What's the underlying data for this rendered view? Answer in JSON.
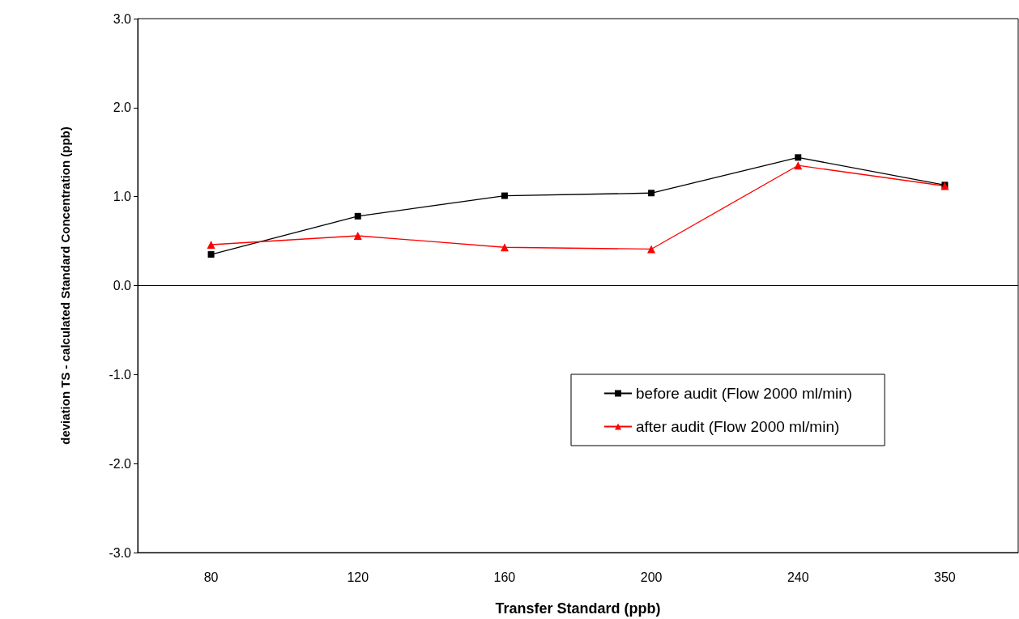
{
  "chart_data": {
    "type": "line",
    "xlabel": "Transfer Standard (ppb)",
    "ylabel": "deviation TS - calculated Standard Concentration (ppb)",
    "categories": [
      "80",
      "120",
      "160",
      "200",
      "240",
      "350"
    ],
    "series": [
      {
        "name": "before audit (Flow 2000 ml/min)",
        "color": "#000000",
        "marker": "square",
        "values": [
          0.35,
          0.78,
          1.01,
          1.04,
          1.44,
          1.13
        ]
      },
      {
        "name": "after audit (Flow 2000 ml/min)",
        "color": "#ff0000",
        "marker": "triangle",
        "values": [
          0.46,
          0.56,
          0.43,
          0.41,
          1.35,
          1.12
        ]
      }
    ],
    "ylim": [
      -3,
      3
    ],
    "yticks": [
      {
        "value": -3,
        "label": "-3.0"
      },
      {
        "value": -2,
        "label": "-2.0"
      },
      {
        "value": -1,
        "label": "-1.0"
      },
      {
        "value": 0,
        "label": "0.0"
      },
      {
        "value": 1,
        "label": "1.0"
      },
      {
        "value": 2,
        "label": "2.0"
      },
      {
        "value": 3,
        "label": "3.0"
      }
    ],
    "ref_lines": [
      {
        "axis": "y",
        "value": 0
      }
    ],
    "grid": false,
    "legend": "right",
    "line_style": "solid"
  }
}
